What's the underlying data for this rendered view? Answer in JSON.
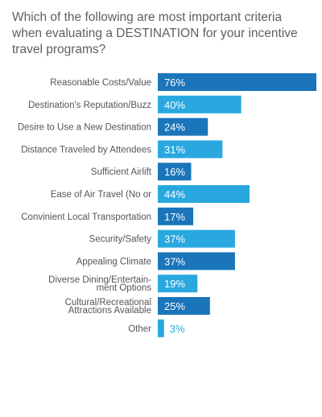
{
  "chart_data": {
    "type": "bar",
    "orientation": "horizontal",
    "title": "Which of the following are most important criteria when evaluating a DESTINATION for your incentive travel programs?",
    "categories": [
      [
        "Reasonable Costs/Value"
      ],
      [
        "Destination's Reputation/Buzz"
      ],
      [
        "Desire to Use a New Destination"
      ],
      [
        "Distance Traveled by Attendees"
      ],
      [
        "Sufficient Airlift"
      ],
      [
        "Ease of Air Travel (No or"
      ],
      [
        "Convinient Local Transportation"
      ],
      [
        "Security/Safety"
      ],
      [
        "Appealing Climate"
      ],
      [
        "Diverse Dining/Entertain-",
        "ment Options"
      ],
      [
        "Cultural/Recreational",
        "Attractions Available"
      ],
      [
        "Other"
      ]
    ],
    "values": [
      76,
      40,
      24,
      31,
      16,
      44,
      17,
      37,
      37,
      19,
      25,
      3
    ],
    "value_labels": [
      "76%",
      "40%",
      "24%",
      "31%",
      "16%",
      "44%",
      "17%",
      "37%",
      "37%",
      "19%",
      "25%",
      "3%"
    ],
    "bar_colors": [
      "#1a75bb",
      "#29a8e0",
      "#1a75bb",
      "#29a8e0",
      "#1a75bb",
      "#29a8e0",
      "#1a75bb",
      "#29a8e0",
      "#1a75bb",
      "#29a8e0",
      "#1a75bb",
      "#29a8e0"
    ],
    "xlim": [
      0,
      76
    ],
    "grid": false,
    "legend": "none"
  }
}
